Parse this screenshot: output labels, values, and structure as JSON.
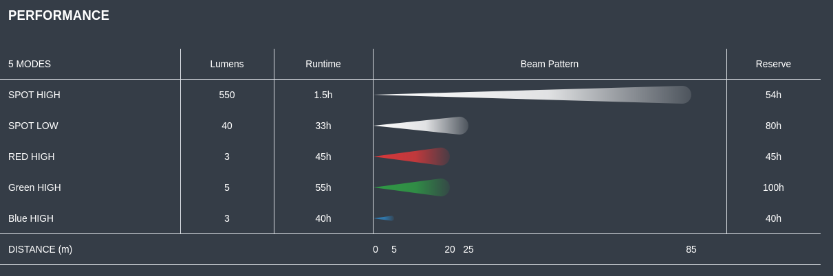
{
  "title": "PERFORMANCE",
  "headers": {
    "modes": "5 MODES",
    "lumens": "Lumens",
    "runtime": "Runtime",
    "beam": "Beam Pattern",
    "reserve": "Reserve"
  },
  "rows": [
    {
      "mode": "SPOT HIGH",
      "lumens": "550",
      "runtime": "1.5h",
      "reserve": "54h",
      "beam_distance_m": 85,
      "beam_color": "#ffffff"
    },
    {
      "mode": "SPOT LOW",
      "lumens": "40",
      "runtime": "33h",
      "reserve": "80h",
      "beam_distance_m": 25,
      "beam_color": "#ffffff"
    },
    {
      "mode": "RED HIGH",
      "lumens": "3",
      "runtime": "45h",
      "reserve": "45h",
      "beam_distance_m": 20,
      "beam_color": "#d8383a"
    },
    {
      "mode": "Green HIGH",
      "lumens": "5",
      "runtime": "55h",
      "reserve": "100h",
      "beam_distance_m": 20,
      "beam_color": "#2f9a45"
    },
    {
      "mode": "Blue HIGH",
      "lumens": "3",
      "runtime": "40h",
      "reserve": "40h",
      "beam_distance_m": 5,
      "beam_color": "#2f7fb8"
    }
  ],
  "distance": {
    "label": "DISTANCE (m)",
    "ticks": [
      "0",
      "5",
      "20",
      "25",
      "85"
    ],
    "tick_values": [
      0,
      5,
      20,
      25,
      85
    ]
  },
  "colors": {
    "background": "#353d47",
    "rule": "#d9dde2",
    "text": "#ffffff"
  }
}
